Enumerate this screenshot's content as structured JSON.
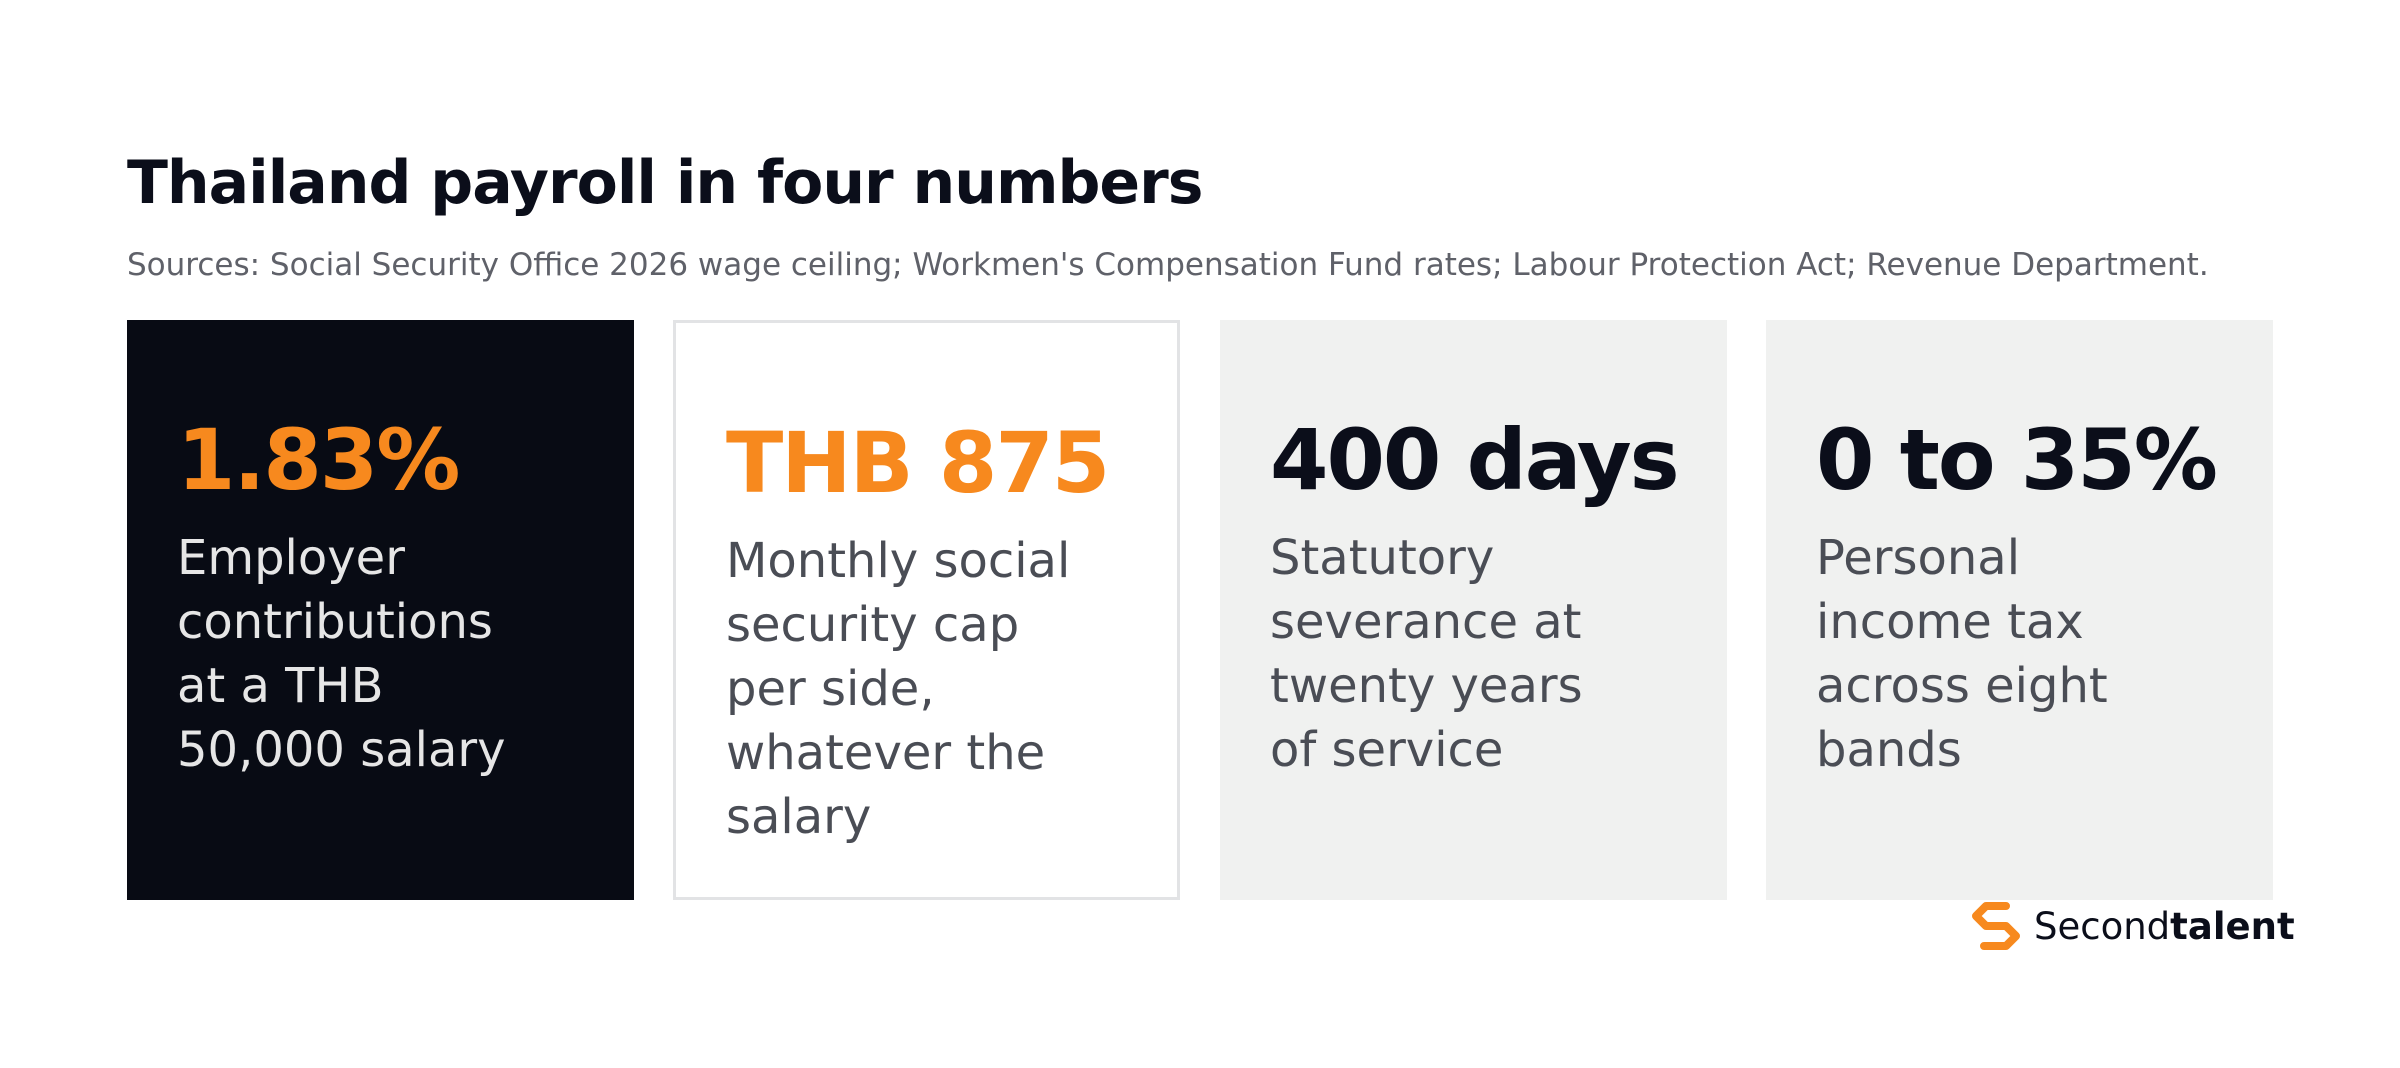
{
  "header": {
    "title": "Thailand payroll in four numbers",
    "subtitle": "Sources: Social Security Office 2026 wage ceiling; Workmen's Compensation Fund rates; Labour Protection Act; Revenue Department."
  },
  "cards": [
    {
      "value": "1.83%",
      "lines": [
        "Employer",
        "contributions",
        "at a THB",
        "50,000 salary"
      ]
    },
    {
      "value": "THB 875",
      "lines": [
        "Monthly social",
        "security cap",
        "per side,",
        "whatever the",
        "salary"
      ]
    },
    {
      "value": "400 days",
      "lines": [
        "Statutory",
        "severance at",
        "twenty years",
        "of service"
      ]
    },
    {
      "value": "0 to 35%",
      "lines": [
        "Personal",
        "income tax",
        "across eight",
        "bands"
      ]
    }
  ],
  "brand": {
    "first": "Second",
    "second": "talent"
  }
}
